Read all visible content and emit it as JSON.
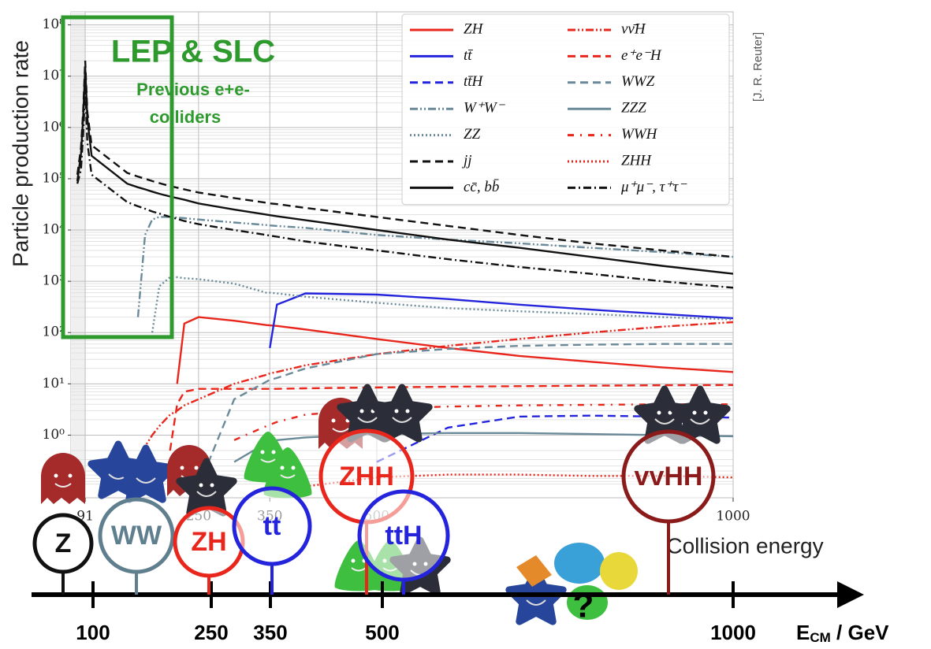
{
  "chart_data": {
    "type": "line",
    "ylabel": "Particle production rate",
    "log_y": true,
    "grid": true,
    "legend": "upper right",
    "x": [
      80,
      85,
      88,
      91,
      94,
      100,
      150,
      165,
      175,
      185,
      195,
      210,
      220,
      230,
      250,
      300,
      345,
      350,
      360,
      400,
      500,
      600,
      700,
      800,
      900,
      1000
    ],
    "xlim": [
      71,
      1000
    ],
    "xticks": [
      91,
      250,
      350,
      500,
      1000
    ],
    "ylim": [
      0.06,
      180000000
    ],
    "yticks": [
      {
        "value": 1,
        "label": "10⁰"
      },
      {
        "value": 10,
        "label": "10¹"
      },
      {
        "value": 100,
        "label": "10²"
      },
      {
        "value": 1000,
        "label": "10³"
      },
      {
        "value": 10000,
        "label": "10⁴"
      },
      {
        "value": 100000,
        "label": "10⁵"
      },
      {
        "value": 1000000,
        "label": "10⁶"
      },
      {
        "value": 10000000,
        "label": "10⁷"
      },
      {
        "value": 100000000,
        "label": "10⁸"
      }
    ],
    "series": [
      {
        "name": "ZH",
        "color": "#e8261c",
        "dash": "solid",
        "values": [
          null,
          null,
          null,
          null,
          null,
          null,
          null,
          null,
          null,
          null,
          null,
          null,
          10,
          150,
          200,
          170,
          140,
          138,
          135,
          115,
          75,
          50,
          35,
          27,
          21,
          17
        ]
      },
      {
        "name": "tt̄",
        "color": "#2424dc",
        "dash": "solid",
        "values": [
          null,
          null,
          null,
          null,
          null,
          null,
          null,
          null,
          null,
          null,
          null,
          null,
          null,
          null,
          null,
          null,
          null,
          50,
          350,
          580,
          550,
          450,
          350,
          280,
          230,
          190
        ]
      },
      {
        "name": "tt̄H",
        "color": "#2424dc",
        "dash": "dashed",
        "values": [
          null,
          null,
          null,
          null,
          null,
          null,
          null,
          null,
          null,
          null,
          null,
          null,
          null,
          null,
          null,
          null,
          null,
          null,
          null,
          null,
          0.3,
          1.4,
          2.3,
          2.4,
          2.3,
          2.2
        ]
      },
      {
        "name": "W⁺W⁻",
        "color": "#6a8a9a",
        "dash": "dashdotdot",
        "values": [
          null,
          null,
          null,
          null,
          null,
          null,
          null,
          200,
          8000,
          16000,
          18000,
          18000,
          17500,
          17000,
          16000,
          14000,
          12500,
          12300,
          12000,
          11000,
          8000,
          6500,
          5500,
          4500,
          3700,
          3000
        ]
      },
      {
        "name": "ZZ",
        "color": "#6a8a9a",
        "dash": "dotted",
        "values": [
          null,
          null,
          null,
          null,
          null,
          null,
          null,
          null,
          null,
          100,
          800,
          1200,
          1200,
          1150,
          1100,
          900,
          600,
          600,
          580,
          500,
          380,
          300,
          260,
          230,
          200,
          180
        ]
      },
      {
        "name": "jj",
        "color": "#111111",
        "dash": "dashed",
        "values": [
          120000,
          400000,
          2000000,
          20000000,
          2000000,
          450000,
          130000,
          110000,
          100000,
          90000,
          82000,
          72000,
          67000,
          62000,
          54000,
          42000,
          34000,
          33000,
          32000,
          27000,
          18000,
          12000,
          8000,
          5500,
          4000,
          3000
        ]
      },
      {
        "name": "cc̄, bb̄",
        "color": "#111111",
        "dash": "solid",
        "values": [
          90000,
          300000,
          1500000,
          15000000,
          1500000,
          280000,
          80000,
          68000,
          62000,
          56000,
          51000,
          45000,
          42000,
          39000,
          33000,
          25000,
          20000,
          19500,
          18500,
          15500,
          10000,
          6500,
          4500,
          3000,
          2000,
          1400
        ]
      },
      {
        "name": "νν̄H",
        "color": "#e8261c",
        "dash": "dashdotdot",
        "values": [
          null,
          null,
          null,
          null,
          null,
          null,
          0.1,
          0.3,
          0.6,
          1,
          1.5,
          2.5,
          3,
          3.8,
          5,
          10,
          15,
          16,
          17,
          23,
          38,
          55,
          75,
          100,
          130,
          160
        ]
      },
      {
        "name": "e⁺e⁻H",
        "color": "#e8261c",
        "dash": "dashed",
        "values": [
          null,
          null,
          null,
          null,
          null,
          null,
          null,
          null,
          null,
          null,
          null,
          0.5,
          4,
          7,
          8,
          8,
          8,
          8,
          8,
          8.2,
          8.5,
          8.8,
          9,
          9.2,
          9.4,
          9.5
        ]
      },
      {
        "name": "WWZ",
        "color": "#6a8a9a",
        "dash": "dashed",
        "values": [
          null,
          null,
          null,
          null,
          null,
          null,
          null,
          null,
          null,
          null,
          null,
          null,
          null,
          null,
          0.1,
          5,
          11,
          12,
          13,
          20,
          38,
          48,
          55,
          58,
          60,
          60
        ]
      },
      {
        "name": "ZZZ",
        "color": "#6a8a9a",
        "dash": "solid",
        "values": [
          null,
          null,
          null,
          null,
          null,
          null,
          null,
          null,
          null,
          null,
          null,
          null,
          null,
          null,
          null,
          0.3,
          0.7,
          0.75,
          0.8,
          0.9,
          1.05,
          1.1,
          1.1,
          1.05,
          1,
          0.95
        ]
      },
      {
        "name": "WWH",
        "color": "#e8261c",
        "dash": "loosedashdot",
        "values": [
          null,
          null,
          null,
          null,
          null,
          null,
          null,
          null,
          null,
          null,
          null,
          null,
          null,
          null,
          null,
          0.8,
          1.5,
          1.6,
          1.8,
          2.5,
          3.3,
          3.6,
          3.8,
          3.9,
          4,
          4
        ]
      },
      {
        "name": "ZHH",
        "color": "#e8261c",
        "dash": "dotted",
        "values": [
          null,
          null,
          null,
          null,
          null,
          null,
          null,
          null,
          null,
          null,
          null,
          null,
          null,
          null,
          null,
          null,
          null,
          null,
          null,
          0.1,
          0.15,
          0.17,
          0.17,
          0.16,
          0.16,
          0.15
        ]
      },
      {
        "name": "μ⁺μ⁻, τ⁺τ⁻",
        "color": "#111111",
        "dash": "dashdot",
        "values": [
          80000,
          150000,
          700000,
          6000000,
          500000,
          120000,
          35000,
          29000,
          26000,
          23000,
          21000,
          18000,
          16500,
          15000,
          13000,
          10000,
          8000,
          7800,
          7400,
          6000,
          4000,
          2700,
          1900,
          1400,
          1000,
          750
        ]
      }
    ]
  },
  "annotations": {
    "lep_title": "LEP & SLC",
    "lep_sub_1": "Previous e+e-",
    "lep_sub_2": "colliders",
    "credit": "[J. R. Reuter]",
    "collision_energy": "Collision energy",
    "question": "?"
  },
  "colliders": [
    {
      "label": "Z",
      "color": "#111111"
    },
    {
      "label": "WW",
      "color": "#5f7f8f"
    },
    {
      "label": "ZH",
      "color": "#e8261c"
    },
    {
      "label": "tt",
      "color": "#2424dc"
    },
    {
      "label": "ZHH",
      "color": "#e8261c"
    },
    {
      "label": "ttH",
      "color": "#2424dc"
    },
    {
      "label": "vvHH",
      "color": "#8b1a1a"
    }
  ],
  "energy_axis": {
    "ticks": [
      "100",
      "250",
      "350",
      "500",
      "1000"
    ],
    "unit_main": "E",
    "unit_sub": "CM",
    "unit_rest": " / GeV"
  }
}
